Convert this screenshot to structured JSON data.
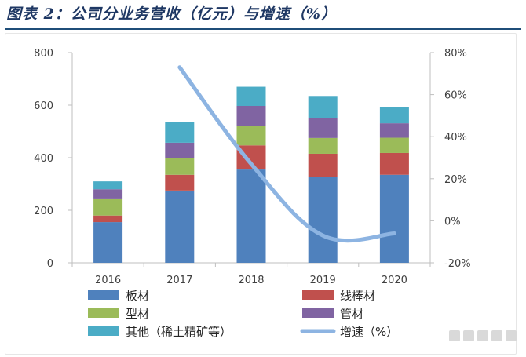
{
  "figure": {
    "title": "图表 2：公司分业务营收（亿元）与增速（%）"
  },
  "colors": {
    "board": "#4f81bd",
    "wire_rod": "#c0504d",
    "section": "#9bbb59",
    "pipe": "#8064a2",
    "other": "#4bacc6",
    "growth": "#8db4e2",
    "title_rule": "#1f4e79"
  },
  "chart_data": {
    "type": "bar",
    "stacked": true,
    "categories": [
      "2016",
      "2017",
      "2018",
      "2019",
      "2020"
    ],
    "series": [
      {
        "name": "板材",
        "color_key": "board",
        "values": [
          155,
          275,
          355,
          328,
          335
        ]
      },
      {
        "name": "线棒材",
        "color_key": "wire_rod",
        "values": [
          25,
          60,
          92,
          87,
          83
        ]
      },
      {
        "name": "型材",
        "color_key": "section",
        "values": [
          65,
          62,
          75,
          60,
          58
        ]
      },
      {
        "name": "管材",
        "color_key": "pipe",
        "values": [
          35,
          60,
          75,
          75,
          55
        ]
      },
      {
        "name": "其他（稀土精矿等）",
        "color_key": "other",
        "values": [
          30,
          78,
          73,
          85,
          62
        ]
      }
    ],
    "line_series": {
      "name": "增速（%）",
      "color_key": "growth",
      "axis": "right",
      "points": [
        {
          "x": "2017",
          "y": 73
        },
        {
          "x": "2018",
          "y": 27
        },
        {
          "x": "2019",
          "y": -7
        },
        {
          "x": "2020",
          "y": -6
        }
      ]
    },
    "y_left": {
      "min": 0,
      "max": 800,
      "ticks": [
        "0",
        "200",
        "400",
        "600",
        "800"
      ]
    },
    "y_right": {
      "min": -20,
      "max": 80,
      "ticks": [
        "-20%",
        "0%",
        "20%",
        "40%",
        "60%",
        "80%"
      ]
    },
    "legend": {
      "position": "bottom",
      "items": [
        {
          "label": "板材",
          "kind": "bar",
          "color_key": "board"
        },
        {
          "label": "线棒材",
          "kind": "bar",
          "color_key": "wire_rod"
        },
        {
          "label": "型材",
          "kind": "bar",
          "color_key": "section"
        },
        {
          "label": "管材",
          "kind": "bar",
          "color_key": "pipe"
        },
        {
          "label": "其他（稀土精矿等）",
          "kind": "bar",
          "color_key": "other"
        },
        {
          "label": "增速（%）",
          "kind": "line",
          "color_key": "growth"
        }
      ]
    },
    "grid": false
  }
}
